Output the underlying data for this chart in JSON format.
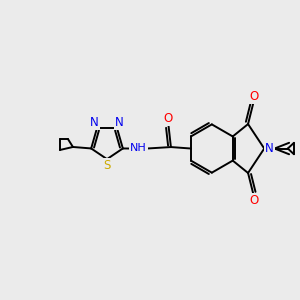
{
  "background_color": "#ebebeb",
  "bond_color": "#000000",
  "atom_colors": {
    "N": "#0000ee",
    "O": "#ff0000",
    "S": "#ccaa00",
    "C": "#000000"
  },
  "lw": 1.4,
  "figsize": [
    3.0,
    3.0
  ],
  "dpi": 100
}
